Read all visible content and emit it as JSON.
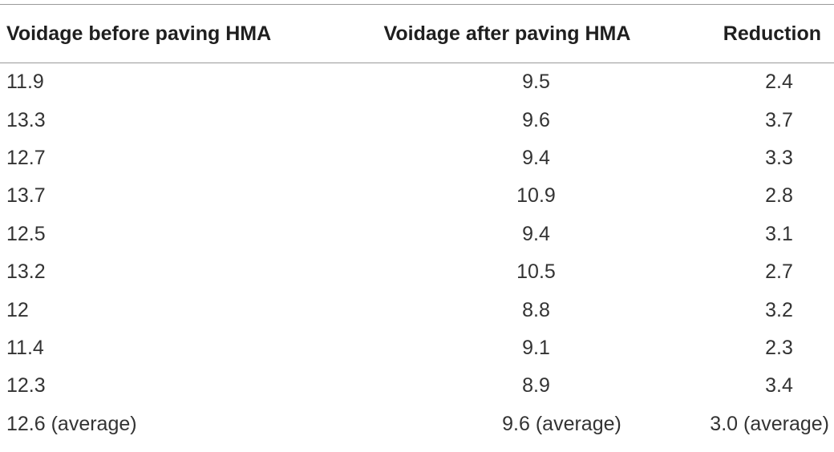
{
  "table": {
    "headers": [
      "Voidage before paving HMA",
      "Voidage after paving HMA",
      "Reduction"
    ],
    "rows": [
      [
        "11.9",
        "9.5",
        "2.4"
      ],
      [
        "13.3",
        "9.6",
        "3.7"
      ],
      [
        "12.7",
        "9.4",
        "3.3"
      ],
      [
        "13.7",
        "10.9",
        "2.8"
      ],
      [
        "12.5",
        "9.4",
        "3.1"
      ],
      [
        "13.2",
        "10.5",
        "2.7"
      ],
      [
        "12",
        "8.8",
        "3.2"
      ],
      [
        "11.4",
        "9.1",
        "2.3"
      ],
      [
        "12.3",
        "8.9",
        "3.4"
      ],
      [
        "12.6 (average)",
        "9.6 (average)",
        "3.0 (average)"
      ]
    ]
  }
}
